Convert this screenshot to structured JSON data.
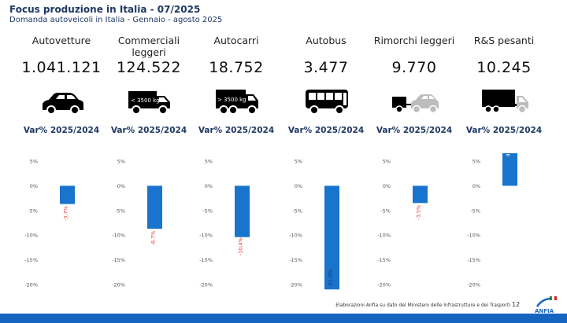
{
  "header": {
    "title": "Focus produzione in Italia - 07/2025",
    "subtitle": "Domanda autoveicoli in Italia - Gennaio - agosto 2025"
  },
  "var_label": "Var% 2025/2024",
  "categories": [
    {
      "label": "Autovetture",
      "value": "1.041.121",
      "icon": "car-icon",
      "change": -3.7,
      "change_label": "-3,7%"
    },
    {
      "label": "Commerciali leggeri",
      "value": "124.522",
      "icon": "light-van-icon",
      "icon_text": "< 3500 kg",
      "change": -8.7,
      "change_label": "-8,7%"
    },
    {
      "label": "Autocarri",
      "value": "18.752",
      "icon": "truck-icon",
      "icon_text": "> 3500 kg",
      "change": -10.4,
      "change_label": "-10,4%"
    },
    {
      "label": "Autobus",
      "value": "3.477",
      "icon": "bus-icon",
      "change": -21.0,
      "change_label": "-21,0%"
    },
    {
      "label": "Rimorchi leggeri",
      "value": "9.770",
      "icon": "car-trailer-icon",
      "change": -3.5,
      "change_label": "-3,5%"
    },
    {
      "label": "R&S pesanti",
      "value": "10.245",
      "icon": "semi-trailer-icon",
      "change": 9.1,
      "change_label": "9,1%"
    }
  ],
  "chart_data": {
    "type": "bar",
    "title": "Var% 2025/2024",
    "categories": [
      "Autovetture",
      "Commerciali leggeri",
      "Autocarri",
      "Autobus",
      "Rimorchi leggeri",
      "R&S pesanti"
    ],
    "values": [
      -3.7,
      -8.7,
      -10.4,
      -21.0,
      -3.5,
      9.1
    ],
    "value_labels": [
      "-3,7%",
      "-8,7%",
      "-10,4%",
      "-21,0%",
      "-3,5%",
      "9,1%"
    ],
    "ylim": [
      -20,
      5
    ],
    "yticks": [
      5,
      0,
      -5,
      -10,
      -15,
      -20
    ],
    "ytick_labels": [
      "5%",
      "0%",
      "-5%",
      "-10%",
      "-15%",
      "-20%"
    ],
    "bar_color": "#1874cd",
    "negative_label_color": "#e53935",
    "positive_label_color": "#ffffff"
  },
  "footer": {
    "note": "Elaborazioni Anfia su dato del Ministero delle Infrastrutture e dei Trasporti",
    "page": "12",
    "logo_text": "ANFIA"
  }
}
